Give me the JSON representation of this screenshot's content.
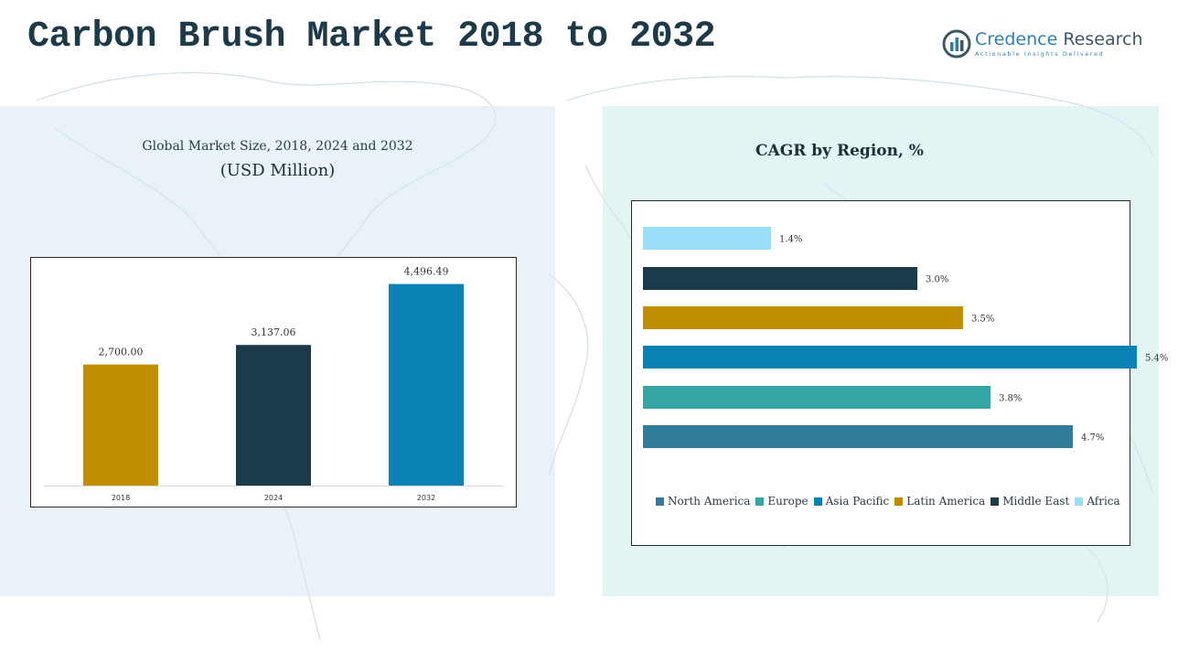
{
  "page": {
    "title": "Carbon Brush Market 2018 to 2032"
  },
  "logo": {
    "name_part1": "Credence",
    "name_part2": "Research",
    "tagline": "Actionable Insights Delivered",
    "icon": "credence-logo-icon",
    "color": "#2e7fb4"
  },
  "chart_data": [
    {
      "type": "bar",
      "title": "Global Market Size, 2018, 2024 and 2032",
      "subtitle": "(USD Million)",
      "categories": [
        "2018",
        "2024",
        "2032"
      ],
      "values": [
        2700.0,
        3137.06,
        4496.49
      ],
      "value_labels": [
        "2,700.00",
        "3,137.06",
        "4,496.49"
      ],
      "colors": [
        "#c08c00",
        "#1b3a4a",
        "#0a82b5"
      ],
      "ylim": [
        0,
        5100
      ],
      "grid": false,
      "xlabel": "",
      "ylabel": ""
    },
    {
      "type": "bar",
      "orientation": "horizontal",
      "title": "CAGR by Region, %",
      "categories": [
        "North America",
        "Europe",
        "Asia Pacific",
        "Latin America",
        "Middle East",
        "Africa"
      ],
      "values": [
        4.7,
        3.8,
        5.4,
        3.5,
        3.0,
        1.4
      ],
      "value_labels": [
        "4.7%",
        "3.8%",
        "5.4%",
        "3.5%",
        "3.0%",
        "1.4%"
      ],
      "colors": [
        "#317b9b",
        "#35a5a5",
        "#0a82b5",
        "#c08c00",
        "#1b3a4a",
        "#99def7"
      ],
      "xlim": [
        0,
        6.0
      ],
      "grid": false,
      "legend": "bottom"
    }
  ]
}
